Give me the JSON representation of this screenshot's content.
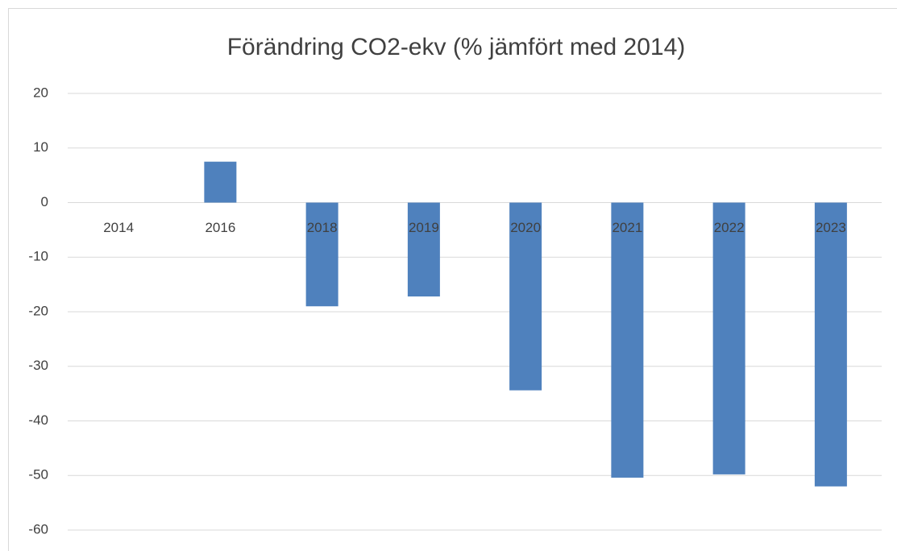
{
  "chart_data": {
    "type": "bar",
    "title": "Förändring CO2-ekv (% jämfört med 2014)",
    "categories": [
      "2014",
      "2016",
      "2018",
      "2019",
      "2020",
      "2021",
      "2022",
      "2023"
    ],
    "values": [
      0,
      7.5,
      -19,
      -17.2,
      -34.4,
      -50.4,
      -49.8,
      -52
    ],
    "color": "#4f81bd",
    "ylim": [
      -60,
      20
    ],
    "yticks": [
      20,
      10,
      0,
      -10,
      -20,
      -30,
      -40,
      -50,
      -60
    ],
    "grid": true
  }
}
